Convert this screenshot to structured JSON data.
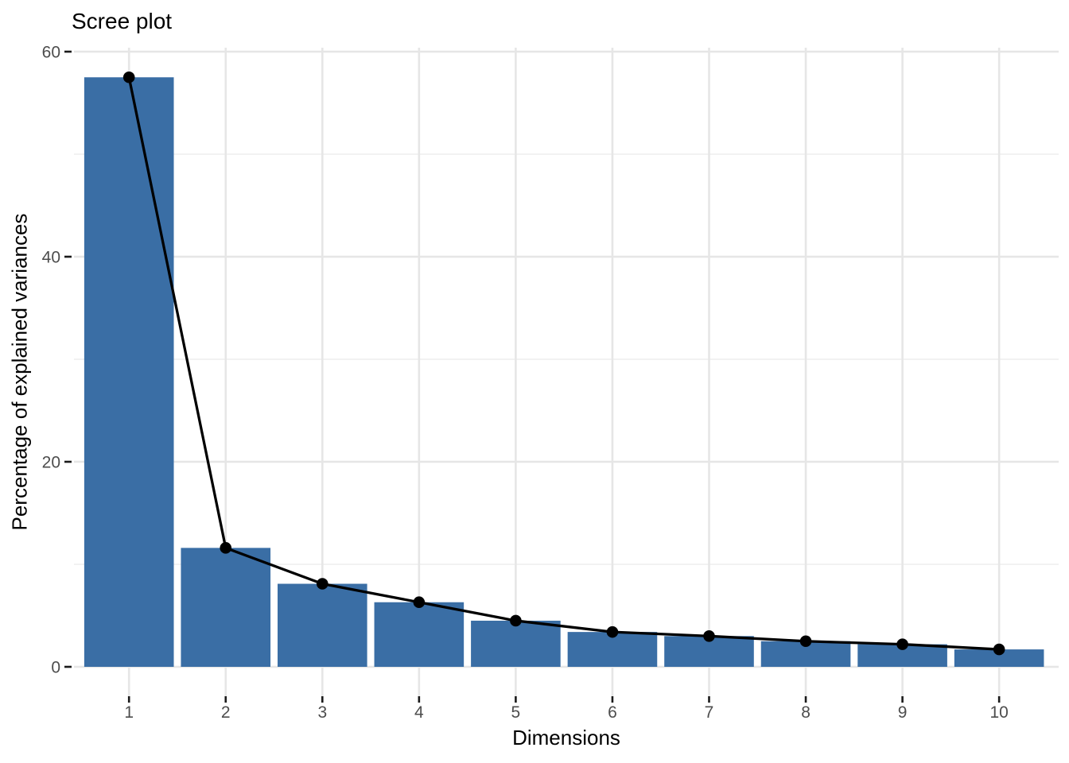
{
  "chart_data": {
    "type": "bar",
    "overlay": "line+points",
    "title": "Scree plot",
    "xlabel": "Dimensions",
    "ylabel": "Percentage of explained variances",
    "categories": [
      1,
      2,
      3,
      4,
      5,
      6,
      7,
      8,
      9,
      10
    ],
    "values": [
      57.5,
      11.6,
      8.1,
      6.3,
      4.5,
      3.4,
      3.0,
      2.5,
      2.2,
      1.7
    ],
    "x_tick_labels": [
      "1",
      "2",
      "3",
      "4",
      "5",
      "6",
      "7",
      "8",
      "9",
      "10"
    ],
    "y_tick_labels": [
      "0",
      "20",
      "40",
      "60"
    ],
    "y_major_ticks": [
      0,
      20,
      40,
      60
    ],
    "y_minor_gridlines": [
      10,
      30,
      50
    ],
    "ylim": [
      0,
      60
    ],
    "grid": true,
    "legend": "none",
    "colors": {
      "bar_fill": "#3A6EA5",
      "line": "#000000",
      "point": "#000000",
      "grid_major": "#E6E6E6",
      "grid_minor": "#F2F2F2",
      "tick_mark": "#1A1A1A",
      "tick_label": "#4D4D4D",
      "title_text": "#000000",
      "background": "#FFFFFF"
    }
  }
}
